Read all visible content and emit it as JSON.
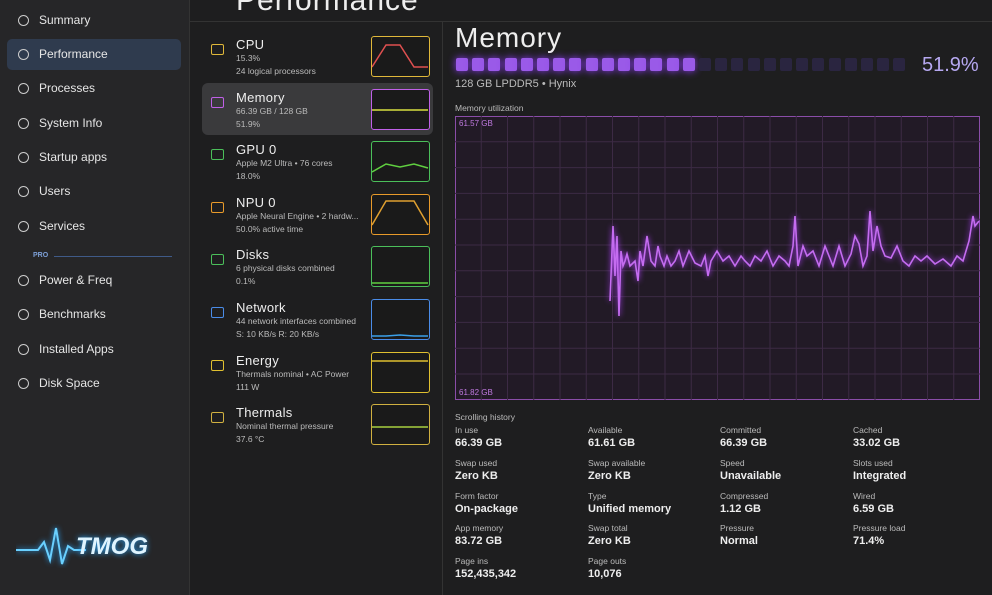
{
  "sidebar": {
    "items": [
      "Summary",
      "Performance",
      "Processes",
      "System Info",
      "Startup apps",
      "Users",
      "Services"
    ],
    "section": "PRO",
    "pro_items": [
      "Power & Freq",
      "Benchmarks",
      "Installed Apps",
      "Disk Space"
    ],
    "logo": "TMOG"
  },
  "header": {
    "title": "Performance"
  },
  "devices": [
    {
      "name": "CPU",
      "lines": [
        "15.3%",
        "24 logical processors"
      ]
    },
    {
      "name": "Memory",
      "lines": [
        "66.39 GB / 128 GB",
        "51.9%"
      ]
    },
    {
      "name": "GPU 0",
      "lines": [
        "Apple M2 Ultra • 76 cores",
        "18.0%"
      ]
    },
    {
      "name": "NPU 0",
      "lines": [
        "Apple Neural Engine • 2 hardw...",
        "50.0% active time"
      ]
    },
    {
      "name": "Disks",
      "lines": [
        "6 physical disks combined",
        "0.1%"
      ]
    },
    {
      "name": "Network",
      "lines": [
        "44 network interfaces combined",
        "S: 10 KB/s  R: 20 KB/s"
      ]
    },
    {
      "name": "Energy",
      "lines": [
        "Thermals nominal • AC Power",
        "111 W"
      ]
    },
    {
      "name": "Thermals",
      "lines": [
        "Nominal thermal pressure",
        "37.6 °C"
      ]
    }
  ],
  "detail": {
    "title": "Memory",
    "percent": "51.9%",
    "subtitle": "128 GB LPDDR5 • Hynix",
    "graph_label": "Memory utilization",
    "graph_top": "61.57 GB",
    "graph_bottom": "61.82 GB",
    "graph_footer": "Scrolling history",
    "stats": [
      [
        {
          "label": "In use",
          "value": "66.39 GB"
        },
        {
          "label": "Available",
          "value": "61.61 GB"
        },
        {
          "label": "Committed",
          "value": "66.39 GB"
        },
        {
          "label": "Cached",
          "value": "33.02 GB"
        }
      ],
      [
        {
          "label": "Swap used",
          "value": "Zero KB"
        },
        {
          "label": "Swap available",
          "value": "Zero KB"
        },
        {
          "label": "Speed",
          "value": "Unavailable"
        },
        {
          "label": "Slots used",
          "value": "Integrated"
        }
      ],
      [
        {
          "label": "Form factor",
          "value": "On-package"
        },
        {
          "label": "Type",
          "value": "Unified memory"
        },
        {
          "label": "Compressed",
          "value": "1.12 GB"
        },
        {
          "label": "Wired",
          "value": "6.59 GB"
        }
      ],
      [
        {
          "label": "App memory",
          "value": "83.72 GB"
        },
        {
          "label": "Swap total",
          "value": "Zero KB"
        },
        {
          "label": "Pressure",
          "value": "Normal"
        },
        {
          "label": "Pressure load",
          "value": "71.4%"
        }
      ],
      [
        {
          "label": "Page ins",
          "value": "152,435,342"
        },
        {
          "label": "Page outs",
          "value": "10,076"
        }
      ]
    ]
  }
}
